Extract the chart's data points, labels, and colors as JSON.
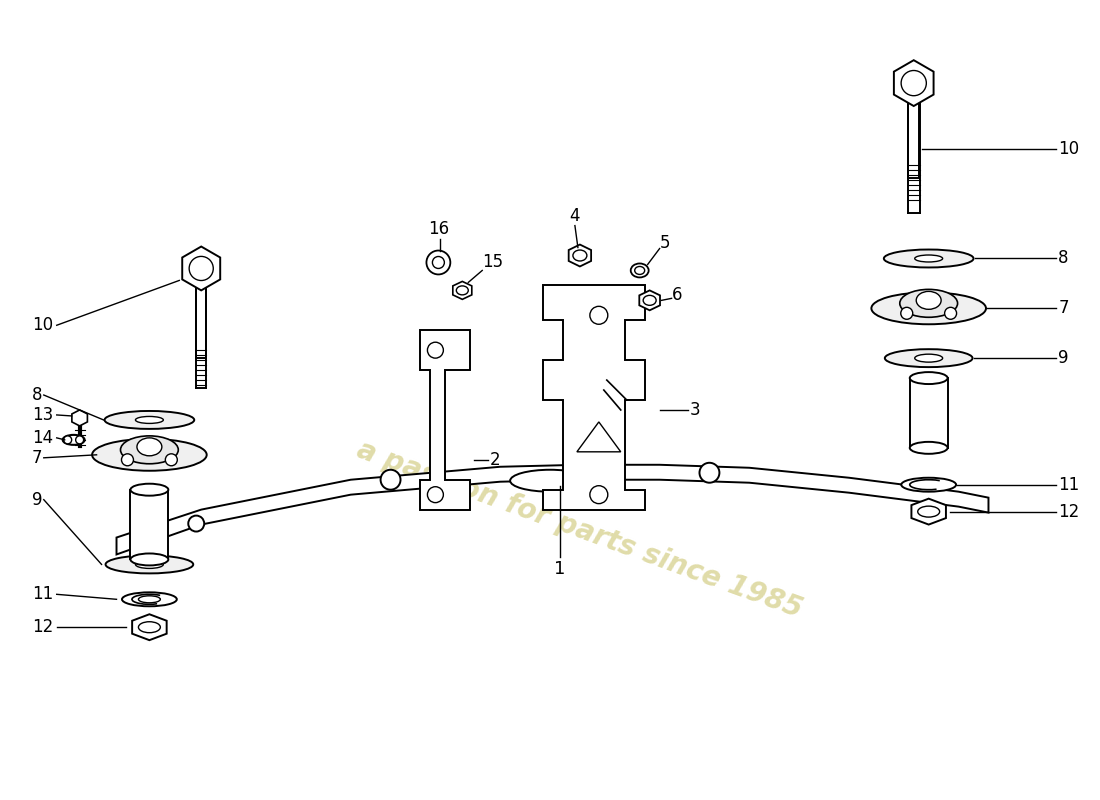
{
  "background_color": "#ffffff",
  "watermark_text": "a passion for parts since 1985",
  "watermark_color": "#ddd8a0",
  "figsize": [
    11.0,
    8.0
  ],
  "dpi": 100
}
